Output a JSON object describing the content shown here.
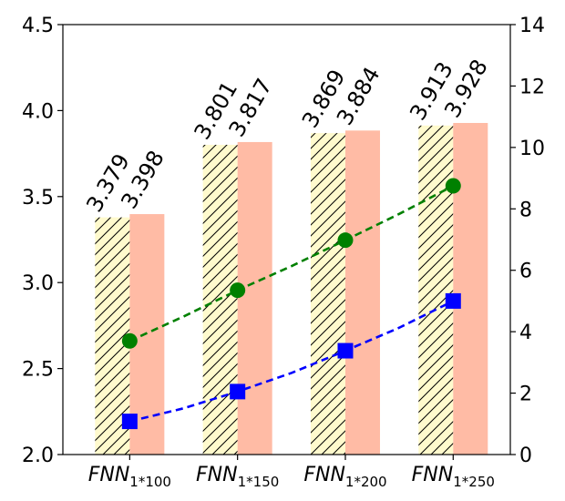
{
  "chart_data": {
    "type": "bar",
    "title": "",
    "categories": [
      {
        "base": "FNN",
        "sub": "1*100"
      },
      {
        "base": "FNN",
        "sub": "1*150"
      },
      {
        "base": "FNN",
        "sub": "1*200"
      },
      {
        "base": "FNN",
        "sub": "1*250"
      }
    ],
    "series": [
      {
        "name": "bar-hatched",
        "kind": "bar",
        "axis": "left",
        "values": [
          3.379,
          3.801,
          3.869,
          3.913
        ],
        "labels": [
          "3.379",
          "3.801",
          "3.869",
          "3.913"
        ],
        "color": "#fffacd",
        "hatch": "///"
      },
      {
        "name": "bar-salmon",
        "kind": "bar",
        "axis": "left",
        "values": [
          3.398,
          3.817,
          3.884,
          3.928
        ],
        "labels": [
          "3.398",
          "3.817",
          "3.884",
          "3.928"
        ],
        "color": "#ffbba5"
      },
      {
        "name": "line-green",
        "kind": "line",
        "axis": "right",
        "values": [
          3.7,
          5.35,
          6.98,
          8.75
        ],
        "color": "#008000",
        "marker": "circle",
        "linestyle": "dashed"
      },
      {
        "name": "line-blue",
        "kind": "line",
        "axis": "right",
        "values": [
          1.08,
          2.05,
          3.38,
          5.0
        ],
        "color": "#0000ff",
        "marker": "square",
        "linestyle": "dashed"
      }
    ],
    "xlabel": "",
    "ylabel": "",
    "ylim": [
      2.0,
      4.5
    ],
    "yticks": [
      "2.0",
      "2.5",
      "3.0",
      "3.5",
      "4.0",
      "4.5"
    ],
    "y2lim": [
      0,
      14
    ],
    "y2ticks": [
      "0",
      "2",
      "4",
      "6",
      "8",
      "10",
      "12",
      "14"
    ],
    "grid": false
  }
}
